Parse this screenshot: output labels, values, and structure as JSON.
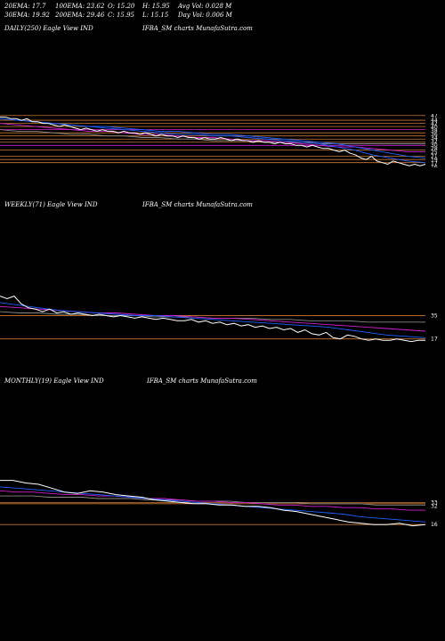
{
  "stats": {
    "ema20": "20EMA: 17.7",
    "ema100": "100EMA: 23.62",
    "open": "O: 15.20",
    "high": "H: 15.95",
    "avg_vol": "Avg Vol: 0.028  M",
    "ema30": "30EMA: 19.92",
    "ema200": "200EMA: 29.46",
    "close": "C: 15.95",
    "low": "L: 15.15",
    "day_vol": "Day Vol: 0.006  M"
  },
  "panels": {
    "daily": {
      "left": "DAILY(250) Eagle   View  IND",
      "right": "IFBA_SM charts MunafaSutra.com"
    },
    "weekly": {
      "left": "WEEKLY(71) Eagle   View  IND",
      "right": "IFBA_SM charts MunafaSutra.com"
    },
    "monthly": {
      "left": "MONTHLY(19) Eagle   View  IND",
      "right": "IFBA_SM charts MunafaSutra.com"
    }
  },
  "colors": {
    "background": "#000000",
    "price": "#ffffff",
    "ema_short": "#1e5fff",
    "ema_long": "#d020d0",
    "level": "#c87832",
    "grey": "#888888"
  },
  "chart_data": [
    {
      "type": "line",
      "name": "daily",
      "ylim": [
        14,
        48
      ],
      "ticks": [
        47,
        44,
        42,
        40,
        38,
        36,
        34,
        32,
        30,
        28,
        25,
        21,
        19,
        17,
        16
      ],
      "price": [
        46,
        46,
        45,
        45,
        44,
        45,
        43,
        43,
        42,
        42,
        41,
        40,
        41,
        40,
        39,
        38,
        39,
        38,
        37,
        38,
        37,
        37,
        36,
        37,
        36,
        36,
        35,
        36,
        35,
        34,
        35,
        34,
        34,
        33,
        34,
        33,
        33,
        32,
        33,
        32,
        32,
        33,
        32,
        31,
        32,
        31,
        31,
        30,
        31,
        30,
        30,
        29,
        30,
        29,
        29,
        28,
        28,
        27,
        28,
        27,
        26,
        26,
        25,
        24,
        25,
        23,
        22,
        20,
        19,
        21,
        18,
        17,
        16,
        18,
        17,
        16,
        15,
        16,
        15,
        16
      ],
      "ema20": [
        45,
        44,
        43,
        42,
        41,
        40,
        39,
        38,
        37,
        36,
        35,
        35,
        34,
        34,
        33,
        32,
        31,
        30,
        29,
        27,
        25,
        22,
        20,
        18,
        17
      ],
      "ema30": [
        45,
        44,
        43,
        42,
        41,
        40,
        40,
        39,
        38,
        37,
        37,
        36,
        35,
        35,
        34,
        33,
        32,
        31,
        30,
        29,
        27,
        25,
        23,
        21,
        20
      ],
      "ema100": [
        42,
        41,
        40,
        39,
        38,
        37,
        37,
        36,
        35,
        35,
        34,
        33,
        33,
        32,
        31,
        31,
        30,
        29,
        28,
        27,
        27,
        26,
        25,
        24,
        24
      ],
      "ema200": [
        38,
        37,
        37,
        36,
        35,
        35,
        34,
        34,
        33,
        33,
        32,
        32,
        31,
        31,
        31,
        30,
        30,
        30,
        29,
        29,
        29,
        29,
        29,
        29,
        29
      ],
      "levels": [
        47,
        44,
        42,
        40,
        38,
        36,
        34,
        32,
        30,
        28,
        25,
        21,
        19,
        17
      ]
    },
    {
      "type": "line",
      "name": "weekly",
      "ylim": [
        12,
        60
      ],
      "ticks": [
        35,
        17
      ],
      "price": [
        50,
        48,
        50,
        44,
        41,
        40,
        38,
        40,
        37,
        38,
        36,
        37,
        36,
        35,
        36,
        35,
        34,
        35,
        34,
        33,
        34,
        33,
        32,
        33,
        32,
        31,
        31,
        32,
        30,
        31,
        29,
        30,
        28,
        29,
        27,
        28,
        26,
        27,
        25,
        26,
        24,
        25,
        22,
        24,
        21,
        20,
        22,
        18,
        17,
        20,
        19,
        17,
        16,
        17,
        16,
        16,
        17,
        16,
        15,
        16,
        16
      ],
      "ema_fast": [
        45,
        43,
        41,
        39,
        38,
        37,
        36,
        35,
        35,
        34,
        33,
        32,
        31,
        30,
        29,
        28,
        27,
        26,
        24,
        22,
        20,
        19,
        18
      ],
      "ema_slow": [
        42,
        41,
        40,
        39,
        38,
        37,
        37,
        36,
        35,
        35,
        34,
        33,
        33,
        32,
        31,
        30,
        29,
        28,
        27,
        26,
        25,
        24,
        23
      ],
      "ema_long": [
        38,
        37,
        37,
        36,
        36,
        35,
        35,
        35,
        34,
        34,
        34,
        33,
        33,
        33,
        32,
        32,
        31,
        31,
        31,
        30,
        30,
        30,
        30
      ],
      "levels": [
        35,
        17
      ]
    },
    {
      "type": "line",
      "name": "monthly",
      "ylim": [
        12,
        60
      ],
      "ticks": [
        33,
        32,
        16
      ],
      "price": [
        50,
        50,
        48,
        47,
        44,
        41,
        40,
        42,
        41,
        39,
        38,
        37,
        35,
        34,
        33,
        32,
        32,
        31,
        31,
        30,
        30,
        29,
        27,
        26,
        24,
        22,
        20,
        18,
        17,
        16,
        16,
        17,
        15,
        16
      ],
      "ema_fast": [
        45,
        44,
        43,
        42,
        41,
        40,
        39,
        38,
        37,
        36,
        35,
        34,
        33,
        32,
        31,
        30,
        29,
        28,
        27,
        26,
        25,
        24,
        22,
        21,
        20,
        19,
        18
      ],
      "ema_slow": [
        42,
        41,
        41,
        40,
        39,
        39,
        38,
        38,
        37,
        36,
        36,
        35,
        34,
        34,
        33,
        33,
        32,
        31,
        31,
        30,
        30,
        29,
        29,
        28,
        28,
        27,
        27
      ],
      "ema_long": [
        38,
        38,
        38,
        37,
        37,
        37,
        36,
        36,
        36,
        35,
        35,
        35,
        34,
        34,
        34,
        33,
        33,
        33,
        33,
        32,
        32,
        32,
        32,
        31,
        31,
        31,
        31
      ],
      "levels": [
        33,
        32,
        16
      ]
    }
  ]
}
